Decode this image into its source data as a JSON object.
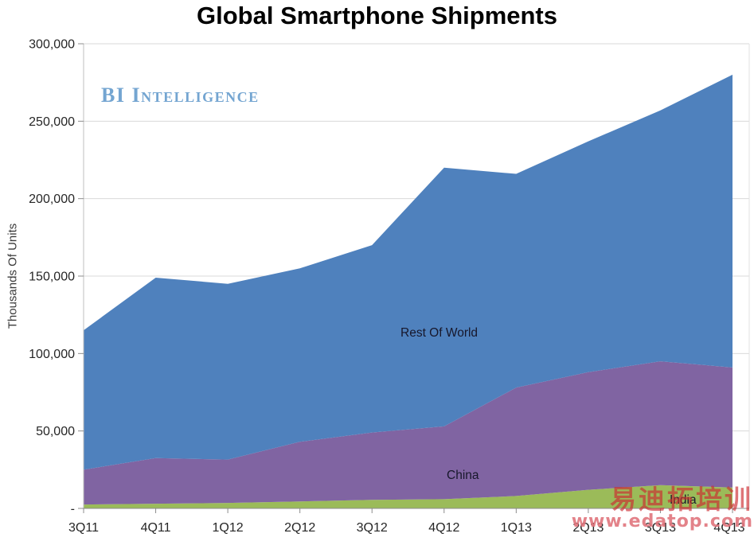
{
  "title": "Global Smartphone Shipments",
  "y_axis_title": "Thousands Of Units",
  "bi_watermark": "BI Intelligence",
  "overlay_watermark": {
    "line1": "易迪拓培训",
    "line2": "www.edatop.com"
  },
  "colors": {
    "title": "#000000",
    "grid": "#D9D9D9",
    "axis": "#8C8C8C",
    "y_axis_line": "#BFBFBF",
    "right_border": "#E2E2E2",
    "tick_label": "#262626",
    "series_label": "#17172B",
    "bi_watermark": "#74A5D1",
    "watermark_red": "rgba(204,41,47,0.65)",
    "watermark_pink": "rgba(224,116,124,0.9)"
  },
  "chart_data": {
    "type": "area",
    "stacked": true,
    "title": "Global Smartphone Shipments",
    "xlabel": "",
    "ylabel": "Thousands Of Units",
    "ylim": [
      0,
      300000
    ],
    "y_tick_step": 50000,
    "y_tick_labels": [
      "-",
      "50,000",
      "100,000",
      "150,000",
      "200,000",
      "250,000",
      "300,000"
    ],
    "grid": true,
    "legend_position": "inline-labels",
    "categories": [
      "3Q11",
      "4Q11",
      "1Q12",
      "2Q12",
      "3Q12",
      "4Q12",
      "1Q13",
      "2Q13",
      "3Q13",
      "4Q13"
    ],
    "series": [
      {
        "name": "India",
        "color": "#9BBB59",
        "values": [
          2500,
          3000,
          3500,
          4500,
          5500,
          6000,
          8000,
          12000,
          15000,
          13500
        ]
      },
      {
        "name": "China",
        "color": "#8064A2",
        "values": [
          22500,
          29500,
          28000,
          38500,
          43500,
          47000,
          70000,
          76000,
          80000,
          77500
        ]
      },
      {
        "name": "Rest Of World",
        "color": "#4F81BD",
        "values": [
          90000,
          116500,
          113500,
          112000,
          121000,
          167000,
          138000,
          149000,
          162000,
          189000
        ]
      }
    ],
    "stacked_totals": [
      115000,
      149000,
      145000,
      155000,
      170000,
      220000,
      216000,
      237000,
      257000,
      280000
    ]
  }
}
